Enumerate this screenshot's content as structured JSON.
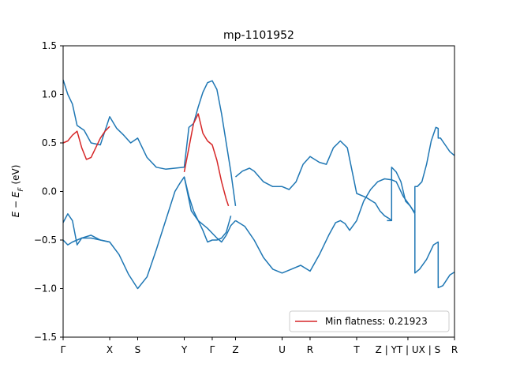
{
  "chart_data": {
    "type": "line",
    "title": "mp-1101952",
    "xlabel": "",
    "ylabel": "E − E_F (eV)",
    "ylabel_parts": {
      "main": "E − E",
      "sub": "F",
      "unit": " (eV)"
    },
    "ylim": [
      -1.5,
      1.5
    ],
    "xlim": [
      0,
      8.4
    ],
    "grid": false,
    "legend_position": "lower-right",
    "y_ticks": [
      -1.5,
      -1.0,
      -0.5,
      0.0,
      0.5,
      1.0,
      1.5
    ],
    "y_tick_labels": [
      "−1.5",
      "−1.0",
      "−0.5",
      "0.0",
      "0.5",
      "1.0",
      "1.5"
    ],
    "x_ticks": [
      {
        "label": "Γ",
        "x": 0.0
      },
      {
        "label": "X",
        "x": 1.0
      },
      {
        "label": "S",
        "x": 1.6
      },
      {
        "label": "Y",
        "x": 2.6
      },
      {
        "label": "Γ",
        "x": 3.2
      },
      {
        "label": "Z",
        "x": 3.7
      },
      {
        "label": "U",
        "x": 4.7
      },
      {
        "label": "R",
        "x": 5.3
      },
      {
        "label": "T",
        "x": 6.3
      },
      {
        "label": "Z | YT | UX | S",
        "x": 7.4
      },
      {
        "label": "R",
        "x": 8.4
      }
    ],
    "colors": {
      "bands": "#1f77b4",
      "flat": "#d62728"
    },
    "series": [
      {
        "role": "band",
        "color": "#1f77b4",
        "x": [
          0.0,
          0.1,
          0.2,
          0.3,
          0.45,
          0.6,
          0.8,
          1.0,
          1.15,
          1.3,
          1.45,
          1.6,
          1.8,
          2.0,
          2.2,
          2.4,
          2.6,
          2.7,
          2.8,
          2.9,
          3.0,
          3.1,
          3.2,
          3.3,
          3.4,
          3.5,
          3.6,
          3.7
        ],
        "y": [
          1.15,
          1.0,
          0.9,
          0.68,
          0.63,
          0.5,
          0.48,
          0.77,
          0.65,
          0.58,
          0.5,
          0.55,
          0.35,
          0.25,
          0.23,
          0.24,
          0.25,
          0.66,
          0.7,
          0.87,
          1.02,
          1.12,
          1.14,
          1.05,
          0.8,
          0.5,
          0.2,
          -0.15
        ]
      },
      {
        "role": "band",
        "color": "#1f77b4",
        "x": [
          0.0,
          0.1,
          0.2,
          0.4,
          0.6,
          0.8,
          1.0,
          1.2,
          1.4,
          1.6,
          1.8,
          2.0,
          2.2,
          2.4,
          2.5,
          2.6,
          2.7,
          2.8,
          2.9,
          3.0,
          3.1,
          3.2,
          3.3,
          3.4,
          3.5,
          3.6,
          3.7
        ],
        "y": [
          -0.5,
          -0.55,
          -0.52,
          -0.48,
          -0.48,
          -0.5,
          -0.52,
          -0.65,
          -0.85,
          -1.0,
          -0.88,
          -0.6,
          -0.3,
          0.0,
          0.08,
          0.15,
          -0.05,
          -0.2,
          -0.3,
          -0.34,
          -0.38,
          -0.43,
          -0.48,
          -0.52,
          -0.45,
          -0.35,
          -0.3
        ]
      },
      {
        "role": "band",
        "color": "#1f77b4",
        "x": [
          0.0,
          0.1,
          0.2,
          0.3,
          0.4,
          0.6,
          0.8,
          1.0
        ],
        "y": [
          -0.32,
          -0.23,
          -0.3,
          -0.55,
          -0.48,
          -0.45,
          -0.5,
          -0.52
        ]
      },
      {
        "role": "band",
        "color": "#1f77b4",
        "x": [
          2.6,
          2.75,
          2.9,
          3.0,
          3.1,
          3.2,
          3.3,
          3.4,
          3.5,
          3.6
        ],
        "y": [
          0.15,
          -0.2,
          -0.3,
          -0.4,
          -0.52,
          -0.5,
          -0.5,
          -0.48,
          -0.42,
          -0.25
        ]
      },
      {
        "role": "band",
        "color": "#1f77b4",
        "x": [
          3.7,
          3.85,
          4.0,
          4.1,
          4.3,
          4.5,
          4.7,
          4.85,
          5.0,
          5.15,
          5.3,
          5.5,
          5.65,
          5.8,
          5.95,
          6.1,
          6.25,
          6.3,
          6.5,
          6.7,
          6.8,
          6.9,
          7.0,
          7.05
        ],
        "y": [
          0.15,
          0.21,
          0.24,
          0.21,
          0.1,
          0.05,
          0.05,
          0.02,
          0.1,
          0.28,
          0.36,
          0.3,
          0.28,
          0.45,
          0.52,
          0.45,
          0.1,
          -0.02,
          -0.06,
          -0.12,
          -0.2,
          -0.25,
          -0.28,
          -0.3
        ]
      },
      {
        "role": "band",
        "color": "#1f77b4",
        "x": [
          3.7,
          3.9,
          4.1,
          4.3,
          4.5,
          4.7,
          4.9,
          5.1,
          5.3,
          5.5,
          5.7,
          5.85,
          5.95,
          6.05,
          6.15,
          6.3,
          6.45,
          6.6,
          6.75,
          6.9,
          7.05
        ],
        "y": [
          -0.3,
          -0.36,
          -0.5,
          -0.68,
          -0.8,
          -0.84,
          -0.8,
          -0.76,
          -0.82,
          -0.65,
          -0.45,
          -0.32,
          -0.3,
          -0.33,
          -0.4,
          -0.3,
          -0.1,
          0.02,
          0.1,
          0.13,
          0.12
        ]
      },
      {
        "role": "band",
        "color": "#1f77b4",
        "x": [
          6.95,
          7.05,
          7.05,
          7.15,
          7.25,
          7.35,
          7.45,
          7.55,
          7.55,
          7.6,
          7.7,
          7.8,
          7.9,
          8.0,
          8.05,
          8.05,
          8.1,
          8.2,
          8.3,
          8.4
        ],
        "y": [
          -0.3,
          -0.3,
          0.25,
          0.2,
          0.1,
          -0.1,
          -0.15,
          -0.22,
          0.05,
          0.05,
          0.1,
          0.28,
          0.52,
          0.66,
          0.65,
          0.55,
          0.55,
          0.48,
          0.41,
          0.37
        ]
      },
      {
        "role": "band",
        "color": "#1f77b4",
        "x": [
          7.05,
          7.15,
          7.3,
          7.45,
          7.55,
          7.55,
          7.65,
          7.8,
          7.95,
          8.05,
          8.05,
          8.15,
          8.3,
          8.4
        ],
        "y": [
          0.12,
          0.1,
          -0.05,
          -0.15,
          -0.23,
          -0.84,
          -0.8,
          -0.7,
          -0.55,
          -0.52,
          -0.99,
          -0.97,
          -0.86,
          -0.83
        ]
      },
      {
        "role": "flat",
        "name": "Min flatness: 0.21923",
        "color": "#d62728",
        "x": [
          0.0,
          0.1,
          0.2,
          0.3,
          0.4,
          0.5,
          0.6,
          0.7,
          0.8,
          0.9,
          1.0
        ],
        "y": [
          0.5,
          0.52,
          0.58,
          0.62,
          0.45,
          0.33,
          0.35,
          0.45,
          0.55,
          0.62,
          0.67
        ]
      },
      {
        "role": "flat",
        "color": "#d62728",
        "x": [
          2.6,
          2.7,
          2.8,
          2.9,
          3.0,
          3.1,
          3.2,
          3.3,
          3.4,
          3.5,
          3.55
        ],
        "y": [
          0.2,
          0.45,
          0.7,
          0.8,
          0.6,
          0.52,
          0.48,
          0.32,
          0.1,
          -0.08,
          -0.15
        ]
      }
    ],
    "legend": [
      {
        "label": "Min flatness: 0.21923",
        "color": "#d62728"
      }
    ]
  }
}
